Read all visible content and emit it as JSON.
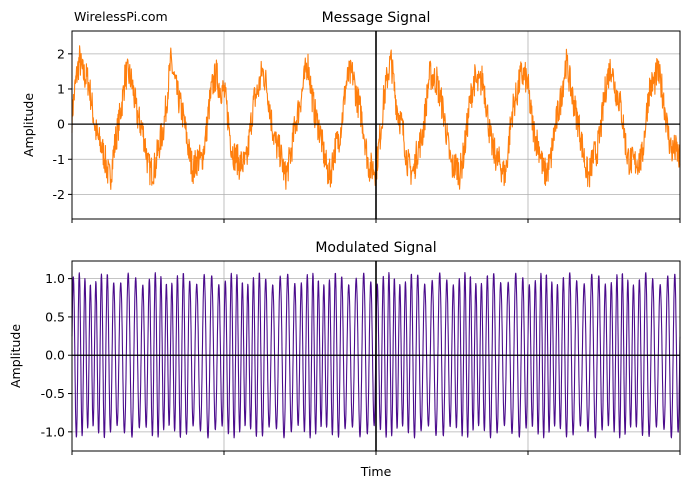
{
  "watermark": "WirelessPi.com",
  "xlabel_shared": "Time",
  "chart_data": [
    {
      "type": "line",
      "title": "Message Signal",
      "xlabel": "",
      "ylabel": "Amplitude",
      "xlim": [
        0,
        4
      ],
      "ylim": [
        -2.7,
        2.65
      ],
      "yticks": [
        "-2",
        "-1",
        "0",
        "1",
        "2"
      ],
      "ytick_values": [
        -2,
        -1,
        0,
        1,
        2
      ],
      "grid": true,
      "series": [
        {
          "color": "#ff7f0e",
          "description_of_shape": "noisy periodic waveform ~8 cycles, peaks ~+2, troughs ~-2, sharp discontinuity at x=2",
          "x": [
            0.0,
            0.05,
            0.1,
            0.15,
            0.2,
            0.25,
            0.3,
            0.35,
            0.4,
            0.45,
            0.5,
            0.55,
            0.6,
            0.65,
            0.7,
            0.75,
            0.8,
            0.85,
            0.9,
            0.95,
            1.0,
            1.05,
            1.1,
            1.15,
            1.2,
            1.25,
            1.3,
            1.35,
            1.4,
            1.45,
            1.5,
            1.55,
            1.6,
            1.65,
            1.7,
            1.75,
            1.8,
            1.85,
            1.9,
            1.95,
            2.0,
            2.05,
            2.1,
            2.15,
            2.2,
            2.25,
            2.3,
            2.35,
            2.4,
            2.45,
            2.5,
            2.55,
            2.6,
            2.65,
            2.7,
            2.75,
            2.8,
            2.85,
            2.9,
            2.95,
            3.0,
            3.05,
            3.1,
            3.15,
            3.2,
            3.25,
            3.3,
            3.35,
            3.4,
            3.45,
            3.5,
            3.55,
            3.6,
            3.65,
            3.7,
            3.75,
            3.8,
            3.85,
            3.9,
            3.95,
            4.0
          ],
          "y": [
            0.2,
            1.9,
            1.2,
            0.1,
            -0.9,
            -1.4,
            -0.3,
            1.5,
            1.0,
            0.0,
            -1.1,
            -1.3,
            0.0,
            1.6,
            0.9,
            -0.4,
            -1.2,
            -1.1,
            0.4,
            1.5,
            0.8,
            -0.5,
            -1.3,
            -0.9,
            0.6,
            1.6,
            0.5,
            -0.7,
            -1.4,
            -0.7,
            0.8,
            1.6,
            0.4,
            -0.8,
            -1.4,
            -0.5,
            1.0,
            1.5,
            0.2,
            -1.0,
            -1.5,
            0.8,
            1.7,
            0.3,
            -0.9,
            -1.4,
            -0.3,
            1.2,
            1.4,
            0.0,
            -1.1,
            -1.5,
            0.0,
            1.3,
            1.2,
            -0.2,
            -1.2,
            -1.3,
            0.3,
            1.5,
            1.0,
            -0.4,
            -1.3,
            -1.1,
            0.5,
            1.6,
            0.8,
            -0.6,
            -1.4,
            -0.9,
            0.7,
            1.7,
            0.6,
            -0.7,
            -1.3,
            -0.8,
            0.9,
            1.6,
            0.4,
            -0.8,
            -1.0
          ]
        }
      ]
    },
    {
      "type": "line",
      "title": "Modulated Signal",
      "xlabel": "Time",
      "ylabel": "Amplitude",
      "xlim": [
        0,
        4
      ],
      "ylim": [
        -1.25,
        1.23
      ],
      "yticks": [
        "-1.0",
        "-0.5",
        "0.0",
        "0.5",
        "1.0"
      ],
      "ytick_values": [
        -1.0,
        -0.5,
        0.0,
        0.5,
        1.0
      ],
      "grid": true,
      "series": [
        {
          "color": "#4b0c8c",
          "description_of_shape": "frequency-modulated sinusoid, amplitude ~1.0-1.1, roughly 100 cycles over the span"
        }
      ]
    }
  ]
}
